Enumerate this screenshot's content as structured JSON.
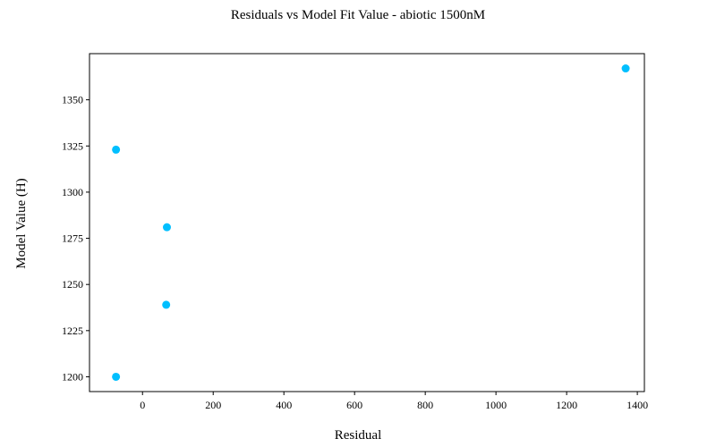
{
  "chart_data": {
    "type": "scatter",
    "title": "Residuals vs Model Fit Value  - abiotic 1500nM",
    "xlabel": "Residual",
    "ylabel": "Model Value (H)",
    "xlim": [
      -150,
      1420
    ],
    "ylim": [
      1192,
      1375
    ],
    "xticks": [
      0,
      200,
      400,
      600,
      800,
      1000,
      1200,
      1400
    ],
    "yticks": [
      1200,
      1225,
      1250,
      1275,
      1300,
      1325,
      1350
    ],
    "grid": false,
    "point_color": "#00bfff",
    "series": [
      {
        "x": [
          -75,
          67,
          69,
          -75,
          1367
        ],
        "y": [
          1200,
          1239,
          1281,
          1323,
          1367
        ]
      }
    ]
  }
}
